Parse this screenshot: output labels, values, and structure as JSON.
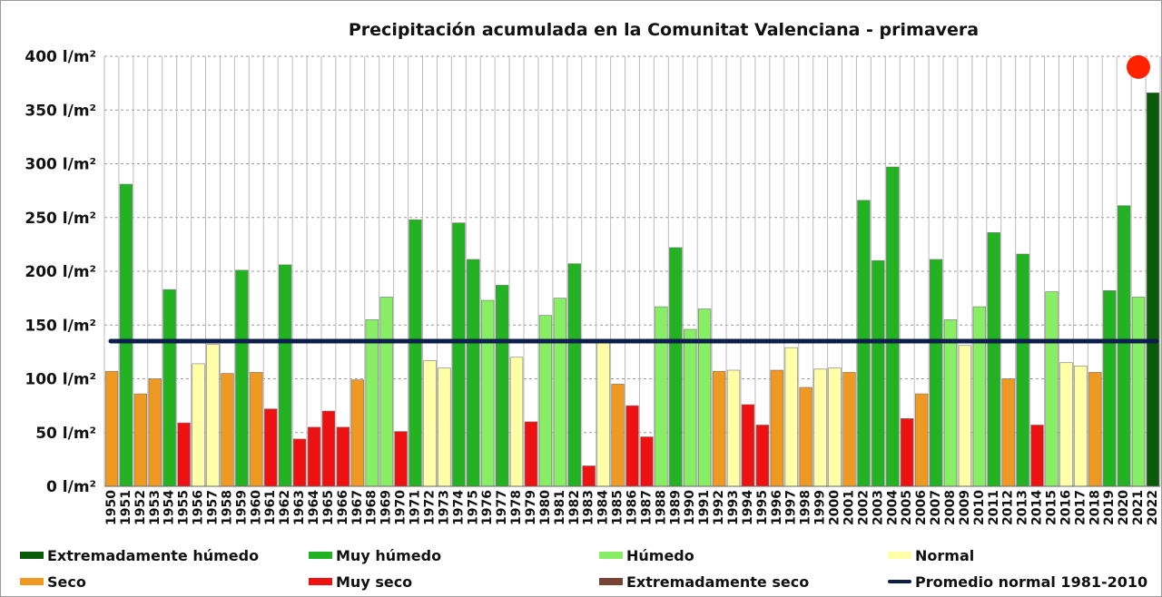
{
  "chart_data": {
    "type": "bar",
    "title": "Precipitación acumulada en la Comunitat Valenciana - primavera",
    "ylim": [
      0,
      400
    ],
    "y_ticks": [
      {
        "value": 0,
        "label": "0 l/m²"
      },
      {
        "value": 50,
        "label": "50 l/m²"
      },
      {
        "value": 100,
        "label": "100 l/m²"
      },
      {
        "value": 150,
        "label": "150 l/m²"
      },
      {
        "value": 200,
        "label": "200 l/m²"
      },
      {
        "value": 250,
        "label": "250 l/m²"
      },
      {
        "value": 300,
        "label": "300 l/m²"
      },
      {
        "value": 350,
        "label": "350 l/m²"
      },
      {
        "value": 400,
        "label": "400 l/m²"
      }
    ],
    "grid": true,
    "categories": [
      "1950",
      "1951",
      "1952",
      "1953",
      "1954",
      "1955",
      "1956",
      "1957",
      "1958",
      "1959",
      "1960",
      "1961",
      "1962",
      "1963",
      "1964",
      "1965",
      "1966",
      "1967",
      "1968",
      "1969",
      "1970",
      "1971",
      "1972",
      "1973",
      "1974",
      "1975",
      "1976",
      "1977",
      "1978",
      "1979",
      "1980",
      "1981",
      "1982",
      "1983",
      "1984",
      "1985",
      "1986",
      "1987",
      "1988",
      "1989",
      "1990",
      "1991",
      "1992",
      "1993",
      "1994",
      "1995",
      "1996",
      "1997",
      "1998",
      "1999",
      "2000",
      "2001",
      "2002",
      "2003",
      "2004",
      "2005",
      "2006",
      "2007",
      "2008",
      "2009",
      "2010",
      "2011",
      "2012",
      "2013",
      "2014",
      "2015",
      "2016",
      "2017",
      "2018",
      "2019",
      "2020",
      "2021",
      "2022"
    ],
    "values": [
      107,
      281,
      86,
      100,
      183,
      59,
      114,
      132,
      105,
      201,
      106,
      72,
      206,
      44,
      55,
      70,
      55,
      99,
      155,
      176,
      51,
      248,
      117,
      110,
      245,
      211,
      173,
      187,
      120,
      60,
      159,
      175,
      207,
      19,
      135,
      95,
      75,
      46,
      167,
      222,
      146,
      165,
      107,
      108,
      76,
      57,
      108,
      129,
      92,
      109,
      110,
      106,
      266,
      210,
      297,
      63,
      86,
      211,
      155,
      131,
      167,
      236,
      100,
      216,
      57,
      181,
      115,
      112,
      106,
      182,
      261,
      176,
      366
    ],
    "classes": [
      "S",
      "MH",
      "S",
      "S",
      "MH",
      "MS",
      "N",
      "N",
      "S",
      "MH",
      "S",
      "MS",
      "MH",
      "MS",
      "MS",
      "MS",
      "MS",
      "S",
      "H",
      "H",
      "MS",
      "MH",
      "N",
      "N",
      "MH",
      "MH",
      "H",
      "MH",
      "N",
      "MS",
      "H",
      "H",
      "MH",
      "MS",
      "N",
      "S",
      "MS",
      "MS",
      "H",
      "MH",
      "H",
      "H",
      "S",
      "N",
      "MS",
      "MS",
      "S",
      "N",
      "S",
      "N",
      "N",
      "S",
      "MH",
      "MH",
      "MH",
      "MS",
      "S",
      "MH",
      "H",
      "N",
      "H",
      "MH",
      "S",
      "MH",
      "MS",
      "H",
      "N",
      "N",
      "S",
      "MH",
      "MH",
      "H",
      "EH"
    ],
    "class_colors": {
      "EH": "#0a5a0a",
      "MH": "#22b222",
      "H": "#88ee66",
      "N": "#ffffa8",
      "S": "#ee9922",
      "MS": "#ee1111",
      "ES": "#774433"
    },
    "reference_line": {
      "value": 135,
      "color": "#0c1f4a"
    },
    "marker": {
      "category": "2022",
      "value": 390,
      "color": "#ff2200"
    },
    "legend": [
      {
        "label": "Extremadamente húmedo",
        "color": "#0a5a0a",
        "kind": "swatch"
      },
      {
        "label": "Muy húmedo",
        "color": "#22b222",
        "kind": "swatch"
      },
      {
        "label": "Húmedo",
        "color": "#88ee66",
        "kind": "swatch"
      },
      {
        "label": "Normal",
        "color": "#ffffa8",
        "kind": "swatch"
      },
      {
        "label": "Seco",
        "color": "#ee9922",
        "kind": "swatch"
      },
      {
        "label": "Muy seco",
        "color": "#ee1111",
        "kind": "swatch"
      },
      {
        "label": "Extremadamente seco",
        "color": "#774433",
        "kind": "swatch"
      },
      {
        "label": "Promedio normal 1981-2010",
        "color": "#0c1f4a",
        "kind": "line"
      }
    ]
  }
}
